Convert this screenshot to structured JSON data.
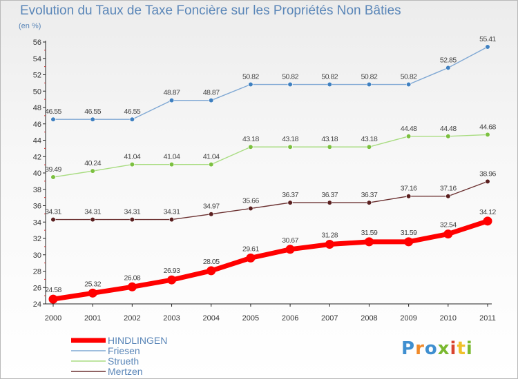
{
  "header": {
    "title": "Evolution du Taux de Taxe Foncière sur les Propriétés Non Bâties",
    "subtitle": "(en %)"
  },
  "logo": {
    "letters": [
      "P",
      "r",
      "o",
      "x",
      "i",
      "t",
      "i"
    ],
    "colors": [
      "#3f8fd0",
      "#f08a2a",
      "#3f8fd0",
      "#7ab92f",
      "#d9442f",
      "#f0c02a",
      "#7ab92f"
    ]
  },
  "chart_data": {
    "type": "line",
    "x": [
      "2000",
      "2001",
      "2002",
      "2003",
      "2004",
      "2005",
      "2006",
      "2007",
      "2008",
      "2009",
      "2010",
      "2011"
    ],
    "ylim": [
      24,
      56
    ],
    "yticks": [
      24,
      26,
      28,
      30,
      32,
      34,
      36,
      38,
      40,
      42,
      44,
      46,
      48,
      50,
      52,
      54,
      56
    ],
    "grid": false,
    "legend_position": "bottom-left",
    "series": [
      {
        "name": "Friesen",
        "color": "#7fa8d4",
        "marker": "#3f80c0",
        "values": [
          46.55,
          46.55,
          46.55,
          48.87,
          48.87,
          50.82,
          50.82,
          50.82,
          50.82,
          50.82,
          52.85,
          55.41
        ],
        "labels": [
          "46.55",
          "46.55",
          "46.55",
          "48.87",
          "48.87",
          "50.82",
          "50.82",
          "50.82",
          "50.82",
          "50.82",
          "52.85",
          "55.41"
        ]
      },
      {
        "name": "Strueth",
        "color": "#a8dc80",
        "marker": "#7cc040",
        "values": [
          39.49,
          40.24,
          41.04,
          41.04,
          41.04,
          43.18,
          43.18,
          43.18,
          43.18,
          44.48,
          44.48,
          44.68
        ],
        "labels": [
          "39.49",
          "40.24",
          "41.04",
          "41.04",
          "41.04",
          "43.18",
          "43.18",
          "43.18",
          "43.18",
          "44.48",
          "44.48",
          "44.68"
        ]
      },
      {
        "name": "Mertzen",
        "color": "#6b3030",
        "marker": "#5a1f1f",
        "values": [
          34.31,
          34.31,
          34.31,
          34.31,
          34.97,
          35.66,
          36.37,
          36.37,
          36.37,
          37.16,
          37.16,
          38.96
        ],
        "labels": [
          "34.31",
          "34.31",
          "34.31",
          "34.31",
          "34.97",
          "35.66",
          "36.37",
          "36.37",
          "36.37",
          "37.16",
          "37.16",
          "38.96"
        ]
      },
      {
        "name": "HINDLINGEN",
        "color": "#ff0000",
        "marker": "#ff0000",
        "values": [
          24.58,
          25.32,
          26.08,
          26.93,
          28.05,
          29.61,
          30.67,
          31.28,
          31.59,
          31.59,
          32.54,
          34.12
        ],
        "labels": [
          "24.58",
          "25.32",
          "26.08",
          "26.93",
          "28.05",
          "29.61",
          "30.67",
          "31.28",
          "31.59",
          "31.59",
          "32.54",
          "34.12"
        ]
      }
    ],
    "legend": [
      "HINDLINGEN",
      "Friesen",
      "Strueth",
      "Mertzen"
    ]
  }
}
